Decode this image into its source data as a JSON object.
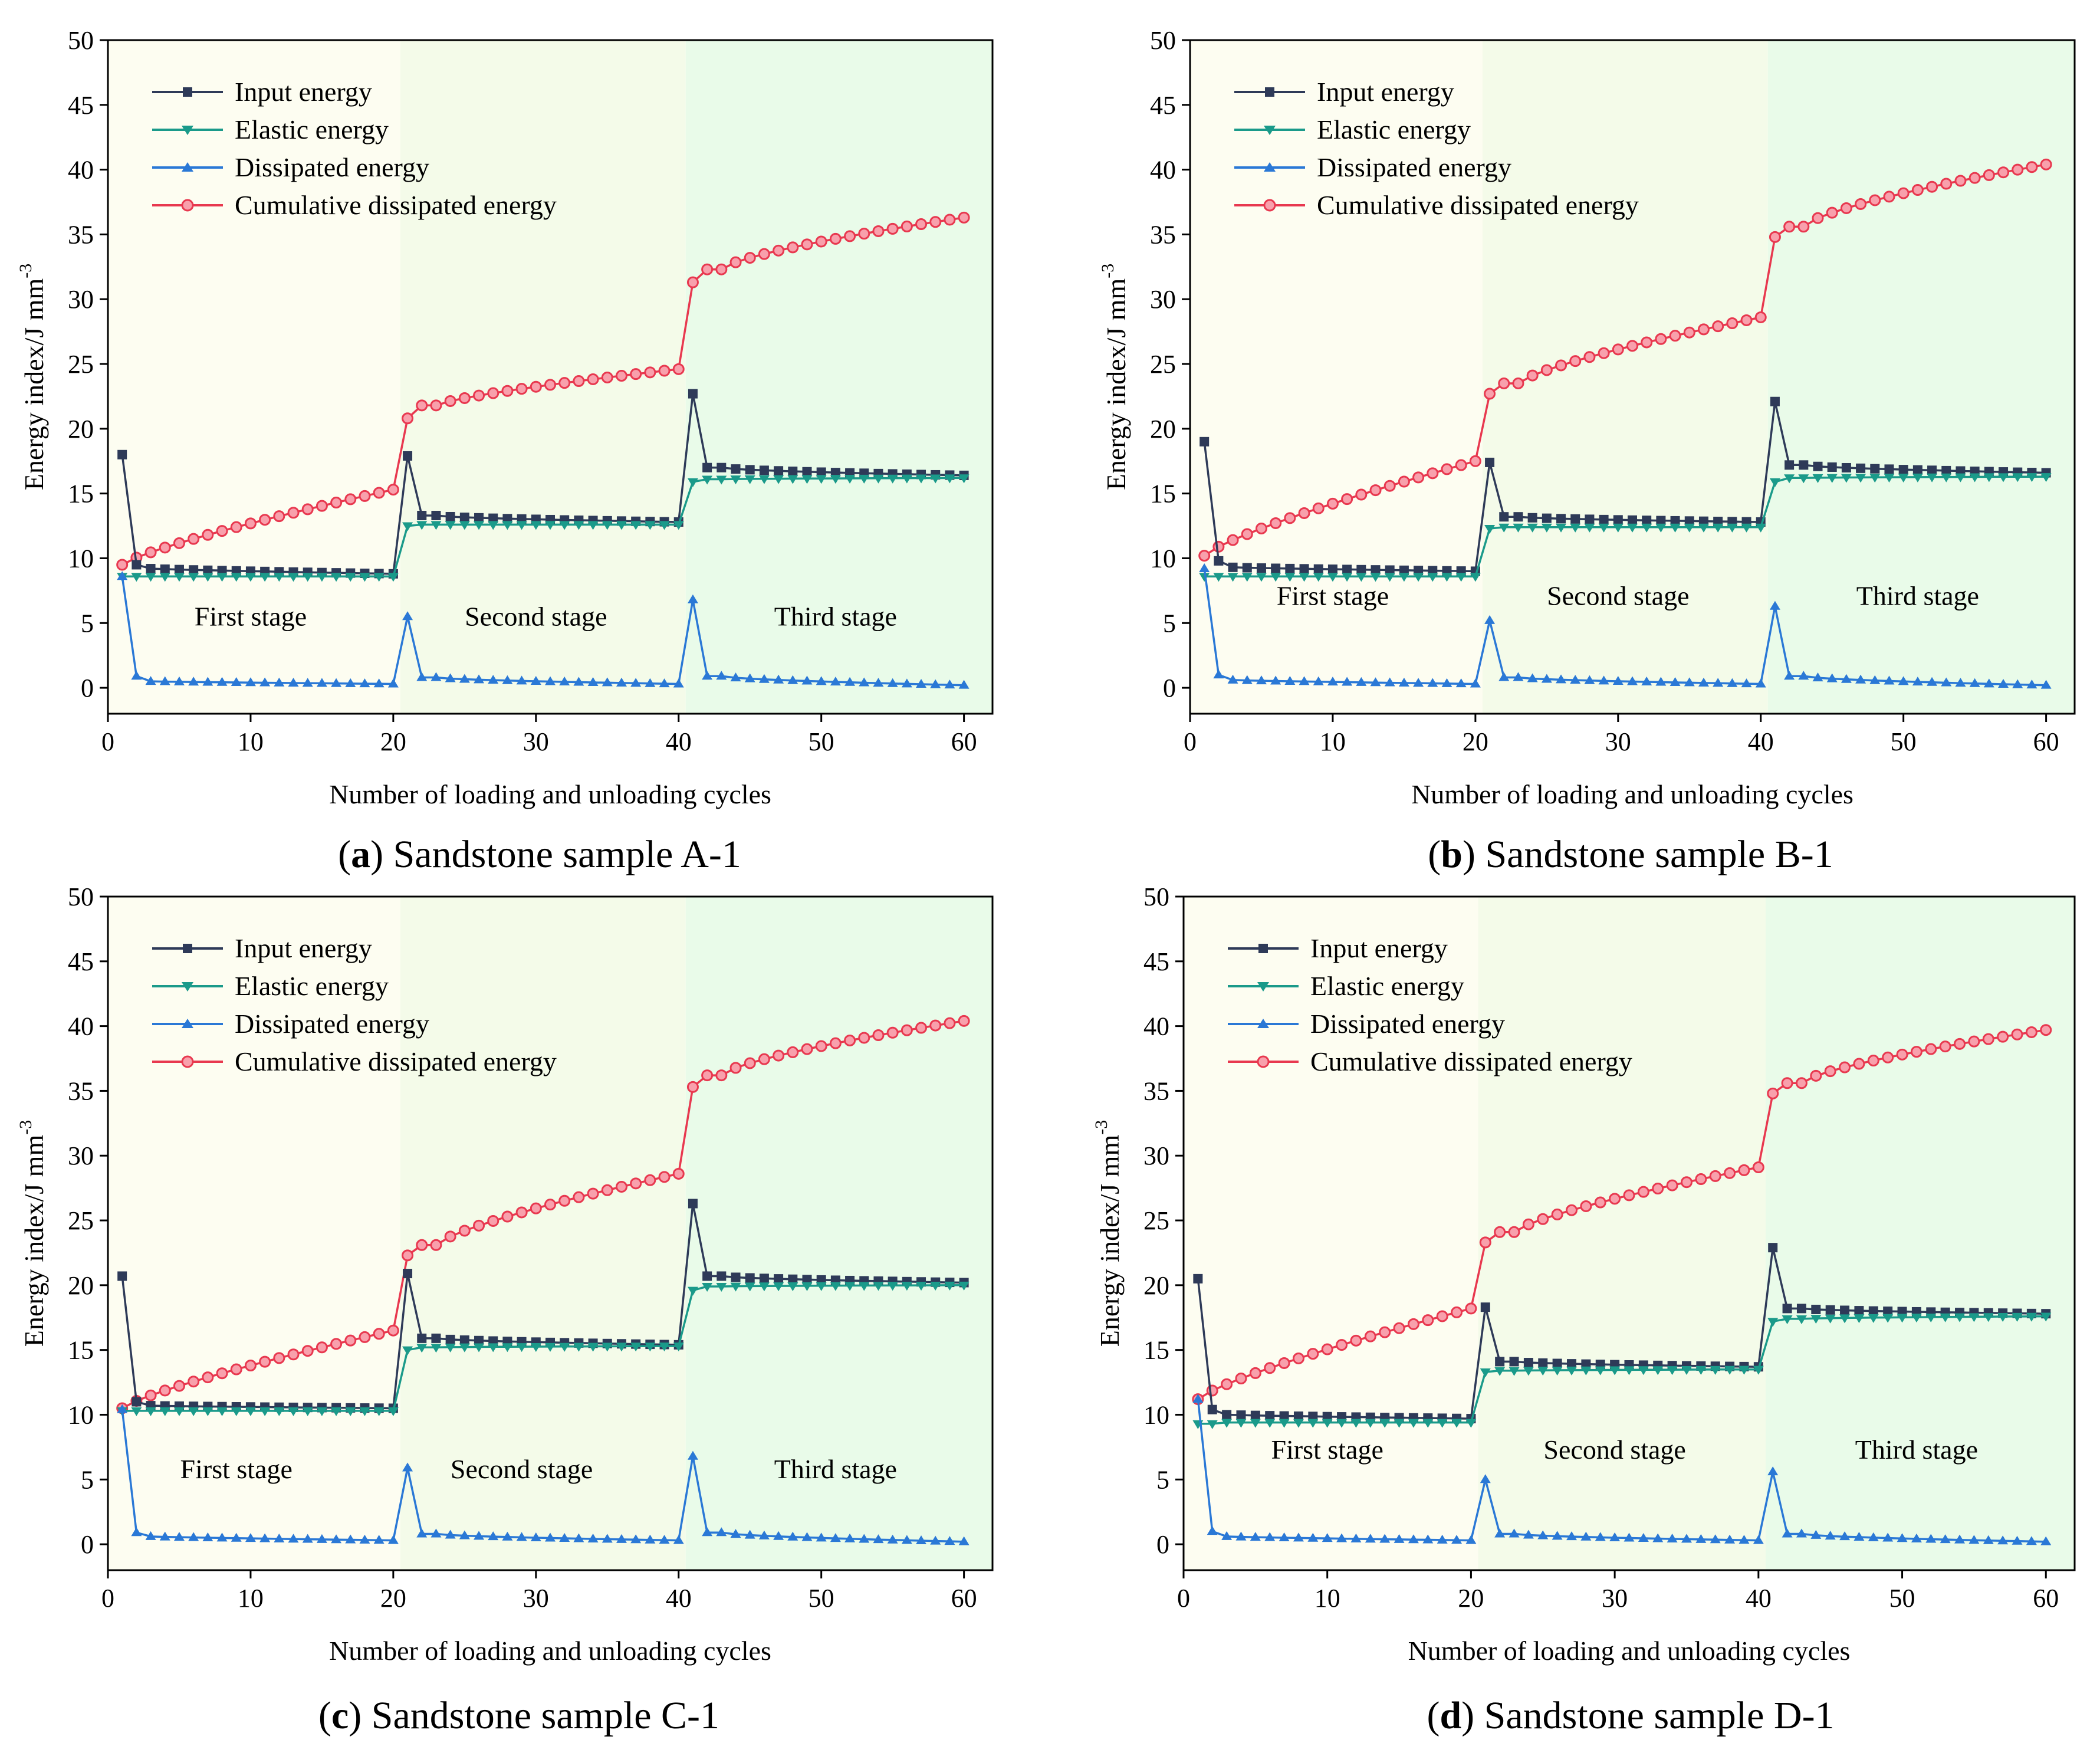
{
  "figure": {
    "stages": [
      "First stage",
      "Second stage",
      "Third stage"
    ],
    "stage_colors": [
      "#fdfdf1",
      "#f4fbe9",
      "#e9fbe9"
    ],
    "series_colors": {
      "input": "#2e3a58",
      "elastic": "#1a9a8a",
      "dissipated": "#2a78d6",
      "cumulative": "#e8384f"
    }
  },
  "chart_data": [
    {
      "type": "line",
      "panel": "a",
      "caption_letter": "a",
      "caption_open": "(",
      "caption_close": ")",
      "caption_text": " Sandstone sample A-1",
      "xlabel": "Number of loading and unloading cycles",
      "ylabel": "Energy index/J mm",
      "ylabel_sup": "-3",
      "xlim": [
        0,
        62
      ],
      "ylim": [
        -2,
        50
      ],
      "xticks": [
        "0",
        "10",
        "20",
        "30",
        "40",
        "50",
        "60"
      ],
      "yticks": [
        "0",
        "5",
        "10",
        "15",
        "20",
        "25",
        "30",
        "35",
        "40",
        "45",
        "50"
      ],
      "stages": [
        {
          "label": "First stage",
          "x_center": 10
        },
        {
          "label": "Second stage",
          "x_center": 30
        },
        {
          "label": "Third stage",
          "x_center": 51
        }
      ],
      "stage_value": 4.8,
      "series": [
        {
          "name": "Input energy",
          "key": "input",
          "first_stage": [
            18.0,
            9.5,
            9.2,
            8.8
          ],
          "second_stage": [
            17.9,
            13.3,
            12.8
          ],
          "third_stage": [
            22.7,
            17.0,
            16.4
          ]
        },
        {
          "name": "Elastic energy",
          "key": "elastic",
          "first_stage": [
            8.6,
            8.6,
            8.6,
            8.6
          ],
          "second_stage": [
            12.5,
            12.6,
            12.6
          ],
          "third_stage": [
            15.9,
            16.1,
            16.2
          ]
        },
        {
          "name": "Dissipated energy",
          "key": "dissipated",
          "first_stage": [
            8.6,
            0.9,
            0.5,
            0.3
          ],
          "second_stage": [
            5.5,
            0.8,
            0.3
          ],
          "third_stage": [
            6.8,
            0.9,
            0.2
          ]
        },
        {
          "name": "Cumulative dissipated energy",
          "key": "cumulative",
          "first_stage": [
            9.5,
            10.2,
            12.5,
            15.3
          ],
          "second_stage": [
            20.8,
            21.8,
            24.6
          ],
          "third_stage": [
            31.3,
            32.3,
            36.3
          ]
        }
      ]
    },
    {
      "type": "line",
      "panel": "b",
      "caption_letter": "b",
      "caption_open": "(",
      "caption_close": ")",
      "caption_text": " Sandstone sample B-1",
      "xlabel": "Number of loading and unloading cycles",
      "ylabel": "Energy index/J mm",
      "ylabel_sup": "-3",
      "xlim": [
        0,
        62
      ],
      "ylim": [
        -2,
        50
      ],
      "xticks": [
        "0",
        "10",
        "20",
        "30",
        "40",
        "50",
        "60"
      ],
      "yticks": [
        "0",
        "5",
        "10",
        "15",
        "20",
        "25",
        "30",
        "35",
        "40",
        "45",
        "50"
      ],
      "stages": [
        {
          "label": "First stage",
          "x_center": 10
        },
        {
          "label": "Second stage",
          "x_center": 30
        },
        {
          "label": "Third stage",
          "x_center": 51
        }
      ],
      "stage_value": 6.4,
      "series": [
        {
          "name": "Input energy",
          "key": "input",
          "first_stage": [
            19.0,
            9.8,
            9.3,
            9.0
          ],
          "second_stage": [
            17.4,
            13.2,
            12.8
          ],
          "third_stage": [
            22.1,
            17.2,
            16.6
          ]
        },
        {
          "name": "Elastic energy",
          "key": "elastic",
          "first_stage": [
            8.6,
            8.6,
            8.6,
            8.6
          ],
          "second_stage": [
            12.3,
            12.4,
            12.4
          ],
          "third_stage": [
            15.9,
            16.2,
            16.3
          ]
        },
        {
          "name": "Dissipated energy",
          "key": "dissipated",
          "first_stage": [
            9.2,
            1.0,
            0.6,
            0.3
          ],
          "second_stage": [
            5.2,
            0.8,
            0.3
          ],
          "third_stage": [
            6.3,
            0.9,
            0.2
          ]
        },
        {
          "name": "Cumulative dissipated energy",
          "key": "cumulative",
          "first_stage": [
            10.2,
            11.2,
            13.7,
            17.5
          ],
          "second_stage": [
            22.7,
            23.5,
            28.6
          ],
          "third_stage": [
            34.8,
            35.6,
            40.4
          ]
        }
      ]
    },
    {
      "type": "line",
      "panel": "c",
      "caption_letter": "c",
      "caption_open": "(",
      "caption_close": ")",
      "caption_text": " Sandstone sample C-1",
      "xlabel": "Number of loading and unloading cycles",
      "ylabel": "Energy index/J mm",
      "ylabel_sup": "-3",
      "xlim": [
        0,
        62
      ],
      "ylim": [
        -2,
        50
      ],
      "xticks": [
        "0",
        "10",
        "20",
        "30",
        "40",
        "50",
        "60"
      ],
      "yticks": [
        "0",
        "5",
        "10",
        "15",
        "20",
        "25",
        "30",
        "35",
        "40",
        "45",
        "50"
      ],
      "stages": [
        {
          "label": "First stage",
          "x_center": 9
        },
        {
          "label": "Second stage",
          "x_center": 29
        },
        {
          "label": "Third stage",
          "x_center": 51
        }
      ],
      "stage_value": 5.1,
      "series": [
        {
          "name": "Input energy",
          "key": "input",
          "first_stage": [
            20.7,
            11.0,
            10.7,
            10.5
          ],
          "second_stage": [
            20.9,
            15.9,
            15.4
          ],
          "third_stage": [
            26.3,
            20.7,
            20.2
          ]
        },
        {
          "name": "Elastic energy",
          "key": "elastic",
          "first_stage": [
            10.3,
            10.3,
            10.3,
            10.3
          ],
          "second_stage": [
            15.0,
            15.2,
            15.3
          ],
          "third_stage": [
            19.6,
            19.9,
            20.0
          ]
        },
        {
          "name": "Dissipated energy",
          "key": "dissipated",
          "first_stage": [
            10.4,
            0.9,
            0.6,
            0.3
          ],
          "second_stage": [
            5.9,
            0.8,
            0.3
          ],
          "third_stage": [
            6.8,
            0.9,
            0.2
          ]
        },
        {
          "name": "Cumulative dissipated energy",
          "key": "cumulative",
          "first_stage": [
            10.5,
            11.3,
            13.4,
            16.5
          ],
          "second_stage": [
            22.3,
            23.1,
            28.6
          ],
          "third_stage": [
            35.3,
            36.2,
            40.4
          ]
        }
      ]
    },
    {
      "type": "line",
      "panel": "d",
      "caption_letter": "d",
      "caption_open": "(",
      "caption_close": ")",
      "caption_text": " Sandstone sample D-1",
      "xlabel": "Number of loading and unloading cycles",
      "ylabel": "Energy index/J mm",
      "ylabel_sup": "-3",
      "xlim": [
        0,
        62
      ],
      "ylim": [
        -2,
        50
      ],
      "xticks": [
        "0",
        "10",
        "20",
        "30",
        "40",
        "50",
        "60"
      ],
      "yticks": [
        "0",
        "5",
        "10",
        "15",
        "20",
        "25",
        "30",
        "35",
        "40",
        "45",
        "50"
      ],
      "stages": [
        {
          "label": "First stage",
          "x_center": 10
        },
        {
          "label": "Second stage",
          "x_center": 30
        },
        {
          "label": "Third stage",
          "x_center": 51
        }
      ],
      "stage_value": 6.6,
      "series": [
        {
          "name": "Input energy",
          "key": "input",
          "first_stage": [
            20.5,
            10.4,
            10.0,
            9.7
          ],
          "second_stage": [
            18.3,
            14.1,
            13.7
          ],
          "third_stage": [
            22.9,
            18.2,
            17.8
          ]
        },
        {
          "name": "Elastic energy",
          "key": "elastic",
          "first_stage": [
            9.3,
            9.3,
            9.4,
            9.4
          ],
          "second_stage": [
            13.3,
            13.4,
            13.5
          ],
          "third_stage": [
            17.2,
            17.4,
            17.6
          ]
        },
        {
          "name": "Dissipated energy",
          "key": "dissipated",
          "first_stage": [
            11.2,
            1.0,
            0.6,
            0.3
          ],
          "second_stage": [
            5.0,
            0.8,
            0.3
          ],
          "third_stage": [
            5.6,
            0.8,
            0.2
          ]
        },
        {
          "name": "Cumulative dissipated energy",
          "key": "cumulative",
          "first_stage": [
            11.2,
            12.2,
            14.3,
            18.2
          ],
          "second_stage": [
            23.3,
            24.1,
            29.1
          ],
          "third_stage": [
            34.8,
            35.6,
            39.7
          ]
        }
      ]
    }
  ]
}
